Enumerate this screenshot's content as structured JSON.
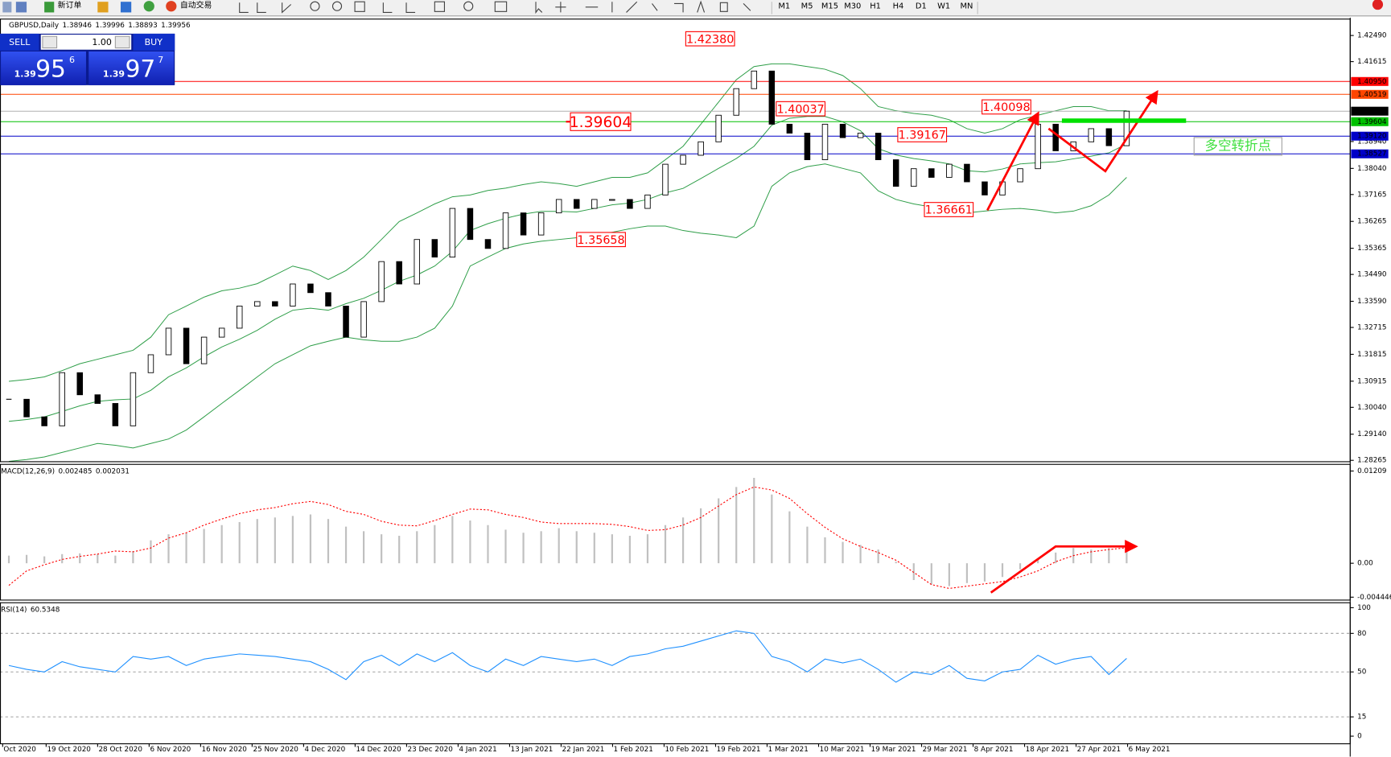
{
  "toolbar": {
    "new_order": "新订单",
    "auto_trading": "自动交易",
    "timeframes": [
      "M1",
      "M5",
      "M15",
      "M30",
      "H1",
      "H4",
      "D1",
      "W1",
      "MN"
    ]
  },
  "trade_panel": {
    "sell": "SELL",
    "lot": "1.00",
    "buy": "BUY",
    "bid_prefix": "1.39",
    "bid_big": "95",
    "bid_sup": "6",
    "ask_prefix": "1.39",
    "ask_big": "97",
    "ask_sup": "7"
  },
  "chart_data": [
    {
      "type": "candlestick",
      "title": "GBPUSD,Daily",
      "ohlc": [
        1.38946,
        1.39996,
        1.38893,
        1.39956
      ],
      "close": [
        1.3031,
        1.2972,
        1.2942,
        1.312,
        1.3046,
        1.3017,
        1.2942,
        1.312,
        1.318,
        1.3269,
        1.315,
        1.3239,
        1.3269,
        1.3343,
        1.3358,
        1.3343,
        1.3417,
        1.3388,
        1.3343,
        1.3239,
        1.3358,
        1.3492,
        1.3417,
        1.3566,
        1.3507,
        1.367,
        1.3566,
        1.3536,
        1.3655,
        1.3581,
        1.3655,
        1.37,
        1.367,
        1.37,
        1.37,
        1.367,
        1.3715,
        1.3818,
        1.3848,
        1.3893,
        1.3982,
        1.4071,
        1.413,
        1.3952,
        1.3922,
        1.3833,
        1.3952,
        1.3907,
        1.3922,
        1.3833,
        1.3744,
        1.3803,
        1.3774,
        1.3818,
        1.3759,
        1.3715,
        1.3759,
        1.3803,
        1.3952,
        1.3863,
        1.3893,
        1.3937,
        1.388,
        1.39956
      ],
      "bands": {
        "color": "#2e9e48",
        "upper": [
          1.3091,
          1.3097,
          1.3106,
          1.3127,
          1.315,
          1.3165,
          1.318,
          1.3195,
          1.3239,
          1.3314,
          1.3343,
          1.3373,
          1.3394,
          1.3403,
          1.3418,
          1.3447,
          1.3477,
          1.3462,
          1.3432,
          1.3462,
          1.3507,
          1.3566,
          1.3626,
          1.3655,
          1.3685,
          1.3709,
          1.3715,
          1.373,
          1.3738,
          1.375,
          1.3759,
          1.3753,
          1.3744,
          1.3759,
          1.3774,
          1.3774,
          1.3789,
          1.3833,
          1.3878,
          1.3952,
          1.4026,
          1.4101,
          1.4145,
          1.4154,
          1.4154,
          1.4145,
          1.4136,
          1.4115,
          1.4071,
          1.4011,
          1.3997,
          1.3988,
          1.3982,
          1.3967,
          1.3937,
          1.3922,
          1.3937,
          1.3967,
          1.3982,
          1.3997,
          1.4011,
          1.4011,
          1.3997,
          1.3997
        ],
        "middle": [
          1.2957,
          1.2963,
          1.2972,
          1.299,
          1.3009,
          1.3024,
          1.3029,
          1.3032,
          1.3061,
          1.3106,
          1.3136,
          1.3173,
          1.3206,
          1.3232,
          1.3262,
          1.3299,
          1.3329,
          1.3336,
          1.3329,
          1.3351,
          1.3369,
          1.3396,
          1.3426,
          1.3447,
          1.3477,
          1.3526,
          1.3596,
          1.3619,
          1.3637,
          1.3651,
          1.366,
          1.366,
          1.3658,
          1.367,
          1.3682,
          1.3688,
          1.37,
          1.3722,
          1.3737,
          1.377,
          1.3804,
          1.3837,
          1.3878,
          1.3949,
          1.3972,
          1.3978,
          1.3978,
          1.396,
          1.393,
          1.387,
          1.3849,
          1.3837,
          1.3829,
          1.3819,
          1.3796,
          1.3792,
          1.3802,
          1.3819,
          1.3823,
          1.3826,
          1.3836,
          1.3845,
          1.3856,
          1.3886
        ],
        "lower": [
          1.2823,
          1.2829,
          1.2838,
          1.2853,
          1.2868,
          1.2883,
          1.2877,
          1.2868,
          1.2883,
          1.2898,
          1.2928,
          1.2972,
          1.3017,
          1.3061,
          1.3106,
          1.315,
          1.318,
          1.321,
          1.3225,
          1.3239,
          1.323,
          1.3225,
          1.3225,
          1.3239,
          1.3269,
          1.3343,
          1.3477,
          1.3507,
          1.3536,
          1.3551,
          1.356,
          1.3566,
          1.3572,
          1.3581,
          1.359,
          1.3602,
          1.3611,
          1.3611,
          1.3596,
          1.3587,
          1.3581,
          1.3572,
          1.3611,
          1.3744,
          1.3789,
          1.381,
          1.3819,
          1.3804,
          1.3789,
          1.3729,
          1.37,
          1.3685,
          1.3675,
          1.367,
          1.3655,
          1.3661,
          1.3667,
          1.367,
          1.3664,
          1.3655,
          1.3661,
          1.3679,
          1.3715,
          1.3774
        ]
      },
      "ylim": [
        1.28234,
        1.43025
      ],
      "yticks": [
        {
          "value": 1.4249,
          "label": "1.42490"
        },
        {
          "value": 1.41615,
          "label": "1.41615"
        },
        {
          "value": 1.3894,
          "label": "1.38940"
        },
        {
          "value": 1.3804,
          "label": "1.38040"
        },
        {
          "value": 1.37165,
          "label": "1.37165"
        },
        {
          "value": 1.36265,
          "label": "1.36265"
        },
        {
          "value": 1.35365,
          "label": "1.35365"
        },
        {
          "value": 1.3449,
          "label": "1.34490"
        },
        {
          "value": 1.3359,
          "label": "1.33590"
        },
        {
          "value": 1.32715,
          "label": "1.32715"
        },
        {
          "value": 1.31815,
          "label": "1.31815"
        },
        {
          "value": 1.30915,
          "label": "1.30915"
        },
        {
          "value": 1.3004,
          "label": "1.30040"
        },
        {
          "value": 1.2914,
          "label": "1.29140"
        },
        {
          "value": 1.28265,
          "label": "1.28265"
        }
      ],
      "levels": [
        {
          "value": 1.4095,
          "label": "1.40950",
          "color": "#ff0000"
        },
        {
          "value": 1.40519,
          "label": "1.40519",
          "color": "#ff4500"
        },
        {
          "value": 1.39956,
          "label": "1.39956",
          "color": "#000000"
        },
        {
          "value": 1.39604,
          "label": "1.39604",
          "color": "#00c000"
        },
        {
          "value": 1.3912,
          "label": "1.39120",
          "color": "#0000c8"
        },
        {
          "value": 1.38527,
          "label": "1.38527",
          "color": "#0000c8"
        }
      ],
      "annotations": [
        {
          "value": 1.4238,
          "label": "1.42380"
        },
        {
          "value": 1.40037,
          "label": "1.40037"
        },
        {
          "value": 1.39167,
          "label": "1.39167"
        },
        {
          "value": 1.40098,
          "label": "1.40098"
        },
        {
          "value": 1.36661,
          "label": "1.36661"
        },
        {
          "value": 1.35658,
          "label": "1.35658"
        }
      ],
      "note": "多空转折点",
      "date_labels": [
        "Oct 2020",
        "19 Oct 2020",
        "28 Oct 2020",
        "6 Nov 2020",
        "16 Nov 2020",
        "25 Nov 2020",
        "4 Dec 2020",
        "14 Dec 2020",
        "23 Dec 2020",
        "4 Jan 2021",
        "13 Jan 2021",
        "22 Jan 2021",
        "1 Feb 2021",
        "10 Feb 2021",
        "19 Feb 2021",
        "1 Mar 2021",
        "10 Mar 2021",
        "19 Mar 2021",
        "29 Mar 2021",
        "8 Apr 2021",
        "18 Apr 2021",
        "27 Apr 2021",
        "6 May 2021"
      ]
    },
    {
      "type": "macd",
      "title": "MACD(12,26,9)",
      "values": [
        0.001,
        0.0011,
        0.0009,
        0.0012,
        0.0013,
        0.0012,
        0.001,
        0.0016,
        0.003,
        0.0038,
        0.004,
        0.0045,
        0.005,
        0.0054,
        0.0058,
        0.006,
        0.0062,
        0.0064,
        0.0058,
        0.0048,
        0.0042,
        0.0038,
        0.0036,
        0.0042,
        0.005,
        0.0062,
        0.0056,
        0.005,
        0.0044,
        0.004,
        0.0042,
        0.0046,
        0.0042,
        0.004,
        0.0038,
        0.0036,
        0.0038,
        0.005,
        0.006,
        0.0072,
        0.0085,
        0.01,
        0.0112,
        0.009,
        0.0068,
        0.0048,
        0.0034,
        0.0028,
        0.0024,
        0.0018,
        0.0002,
        -0.0022,
        -0.0028,
        -0.003,
        -0.0026,
        -0.0024,
        -0.0018,
        -0.0008,
        0.0006,
        0.0014,
        0.002,
        0.0018,
        0.002,
        0.002485
      ],
      "signal": [
        -0.0029,
        -0.001,
        -0.0002,
        0.0005,
        0.0009,
        0.0012,
        0.0016,
        0.0015,
        0.002,
        0.0033,
        0.004,
        0.005,
        0.0058,
        0.0065,
        0.007,
        0.0073,
        0.0078,
        0.0081,
        0.0077,
        0.0068,
        0.0064,
        0.0055,
        0.005,
        0.0049,
        0.0056,
        0.0064,
        0.0071,
        0.007,
        0.0064,
        0.006,
        0.0054,
        0.0052,
        0.0052,
        0.0052,
        0.0051,
        0.0048,
        0.0043,
        0.0044,
        0.005,
        0.006,
        0.0075,
        0.009,
        0.01,
        0.0096,
        0.0085,
        0.0065,
        0.0047,
        0.0032,
        0.0022,
        0.0014,
        0.0004,
        -0.0012,
        -0.0028,
        -0.0033,
        -0.003,
        -0.0027,
        -0.0024,
        -0.0018,
        -0.001,
        0.0002,
        0.001,
        0.0015,
        0.0018,
        0.002031
      ],
      "color": "#c0c0c0",
      "signal_color": "#ff0000",
      "ylim": [
        -0.00477,
        0.01302
      ],
      "yticks": [
        0.01209,
        {
          "value": 0,
          "label": "0.00"
        },
        -0.004446
      ]
    },
    {
      "type": "rsi",
      "title": "RSI(14)",
      "values": [
        55,
        52,
        50,
        58,
        54,
        52,
        50,
        62,
        60,
        62,
        55,
        60,
        62,
        64,
        63,
        62,
        60,
        58,
        52,
        44,
        58,
        63,
        55,
        64,
        58,
        65,
        55,
        50,
        60,
        55,
        62,
        60,
        58,
        60,
        55,
        62,
        64,
        68,
        70,
        74,
        78,
        82,
        80,
        62,
        58,
        50,
        60,
        57,
        60,
        52,
        42,
        50,
        48,
        55,
        45,
        43,
        50,
        52,
        63,
        56,
        60,
        62,
        48,
        60.5348
      ],
      "color": "#1e90ff",
      "ylim": [
        -5.6,
        104.2
      ],
      "yticks": [
        100,
        80,
        50,
        15,
        0
      ],
      "levels": [
        80,
        50,
        15
      ]
    }
  ]
}
